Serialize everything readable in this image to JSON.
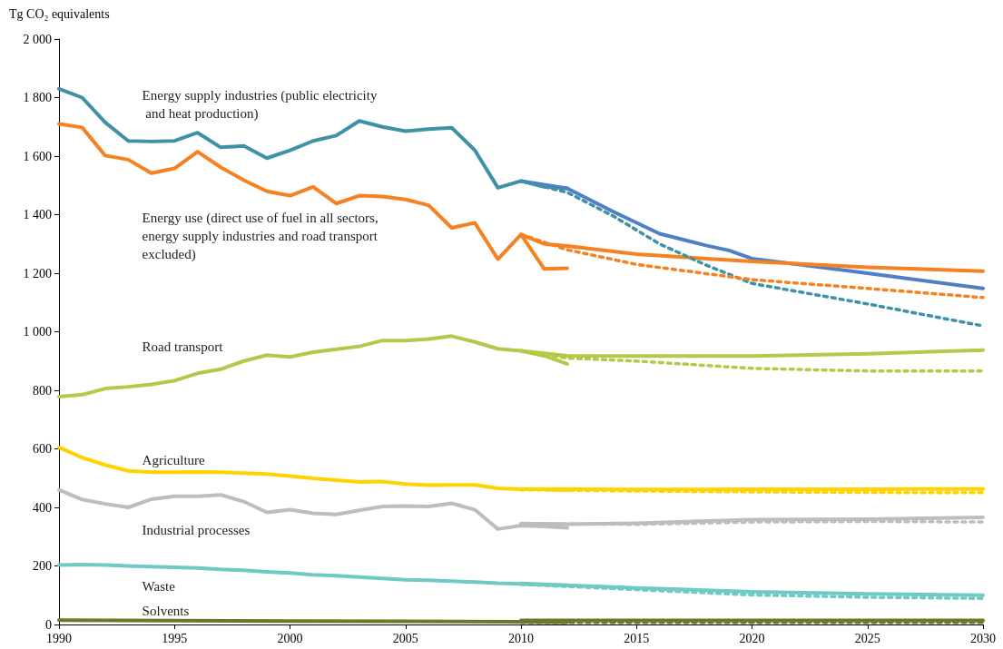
{
  "chart_data": {
    "type": "line",
    "ylabel": "Tg CO₂ equivalents",
    "xlim": [
      1990,
      2030
    ],
    "xticks": [
      1990,
      1995,
      2000,
      2005,
      2010,
      2015,
      2020,
      2025,
      2030
    ],
    "ylim": [
      0,
      2000
    ],
    "yticks": [
      0,
      200,
      400,
      600,
      800,
      {
        "value": 1000,
        "label": "1 000"
      },
      {
        "value": 1200,
        "label": "1 200"
      },
      {
        "value": 1400,
        "label": "1 400"
      },
      {
        "value": 1600,
        "label": "1 600"
      },
      {
        "value": 1800,
        "label": "1 800"
      },
      {
        "value": 2000,
        "label": "2 000"
      }
    ],
    "grid": false,
    "marker": "none",
    "series": [
      {
        "name": "Energy supply industries (public electricity and heat production)",
        "color": "#3f91a6",
        "line_style": "solid",
        "x": [
          1990,
          1991,
          1992,
          1993,
          1994,
          1995,
          1996,
          1997,
          1998,
          1999,
          2000,
          2001,
          2002,
          2003,
          2004,
          2005,
          2006,
          2007,
          2008,
          2009,
          2010,
          2011,
          2012
        ],
        "values": [
          1830,
          1800,
          1715,
          1652,
          1650,
          1652,
          1680,
          1630,
          1635,
          1593,
          1620,
          1652,
          1670,
          1720,
          1700,
          1685,
          1692,
          1697,
          1620,
          1492,
          1515,
          1495,
          1490
        ]
      },
      {
        "color": "#4f7fc6",
        "line_style": "solid",
        "x": [
          2010,
          2012,
          2014,
          2016,
          2018,
          2019,
          2020,
          2025,
          2030
        ],
        "values": [
          1515,
          1490,
          1410,
          1335,
          1295,
          1278,
          1250,
          1200,
          1148
        ]
      },
      {
        "color": "#3f91a6",
        "line_style": "dashed",
        "x": [
          2010,
          2012,
          2014,
          2016,
          2018,
          2020,
          2025,
          2030
        ],
        "values": [
          1515,
          1476,
          1395,
          1300,
          1228,
          1165,
          1095,
          1020
        ]
      },
      {
        "name": "Energy use (direct use of fuel in all sectors, energy supply industries and road transport excluded)",
        "color": "#f58220",
        "line_style": "solid",
        "x": [
          1990,
          1991,
          1992,
          1993,
          1994,
          1995,
          1996,
          1997,
          1998,
          1999,
          2000,
          2001,
          2002,
          2003,
          2004,
          2005,
          2006,
          2007,
          2008,
          2009,
          2010,
          2011,
          2012
        ],
        "values": [
          1710,
          1698,
          1602,
          1588,
          1542,
          1558,
          1615,
          1562,
          1518,
          1480,
          1465,
          1495,
          1438,
          1465,
          1462,
          1452,
          1432,
          1355,
          1372,
          1248,
          1332,
          1215,
          1217
        ]
      },
      {
        "color": "#f58220",
        "line_style": "solid",
        "x": [
          2010,
          2011,
          2012,
          2015,
          2020,
          2025,
          2030
        ],
        "values": [
          1332,
          1300,
          1293,
          1265,
          1240,
          1220,
          1207
        ]
      },
      {
        "color": "#f58220",
        "line_style": "dashed",
        "x": [
          2010,
          2012,
          2015,
          2020,
          2025,
          2030
        ],
        "values": [
          1332,
          1280,
          1230,
          1178,
          1148,
          1117
        ]
      },
      {
        "name": "Road transport",
        "color": "#b2c94a",
        "line_style": "solid",
        "x": [
          1990,
          1991,
          1992,
          1993,
          1994,
          1995,
          1996,
          1997,
          1998,
          1999,
          2000,
          2001,
          2002,
          2003,
          2004,
          2005,
          2006,
          2007,
          2008,
          2009,
          2010,
          2011,
          2012
        ],
        "values": [
          778,
          785,
          806,
          812,
          820,
          833,
          858,
          872,
          900,
          920,
          914,
          930,
          940,
          950,
          970,
          970,
          975,
          985,
          965,
          942,
          935,
          918,
          890
        ]
      },
      {
        "color": "#b2c94a",
        "line_style": "solid",
        "x": [
          2010,
          2012,
          2015,
          2020,
          2025,
          2030
        ],
        "values": [
          935,
          918,
          917,
          917,
          925,
          937
        ]
      },
      {
        "color": "#b2c94a",
        "line_style": "dashed",
        "x": [
          2010,
          2012,
          2015,
          2020,
          2025,
          2030
        ],
        "values": [
          935,
          910,
          900,
          875,
          866,
          866
        ]
      },
      {
        "name": "Agriculture",
        "color": "#ffd200",
        "line_style": "solid",
        "x": [
          1990,
          1991,
          1992,
          1993,
          1994,
          1995,
          1996,
          1997,
          1998,
          1999,
          2000,
          2001,
          2002,
          2003,
          2004,
          2005,
          2006,
          2007,
          2008,
          2009,
          2010,
          2011,
          2012
        ],
        "values": [
          605,
          570,
          545,
          525,
          520,
          520,
          521,
          520,
          517,
          514,
          507,
          499,
          493,
          487,
          488,
          480,
          476,
          477,
          477,
          465,
          462,
          462,
          458
        ]
      },
      {
        "color": "#ffd200",
        "line_style": "solid",
        "x": [
          2010,
          2015,
          2020,
          2025,
          2030
        ],
        "values": [
          463,
          461,
          462,
          462,
          463
        ]
      },
      {
        "color": "#ffd200",
        "line_style": "dashed",
        "x": [
          2010,
          2015,
          2020,
          2025,
          2030
        ],
        "values": [
          460,
          456,
          453,
          451,
          450
        ]
      },
      {
        "name": "Industrial processes",
        "color": "#bdbdc0",
        "line_style": "solid",
        "x": [
          1990,
          1991,
          1992,
          1993,
          1994,
          1995,
          1996,
          1997,
          1998,
          1999,
          2000,
          2001,
          2002,
          2003,
          2004,
          2005,
          2006,
          2007,
          2008,
          2009,
          2010,
          2011,
          2012
        ],
        "values": [
          460,
          427,
          412,
          400,
          428,
          438,
          438,
          443,
          420,
          383,
          392,
          380,
          376,
          390,
          403,
          405,
          403,
          414,
          392,
          326,
          338,
          335,
          330
        ]
      },
      {
        "color": "#bdbdc0",
        "line_style": "solid",
        "x": [
          2010,
          2012,
          2015,
          2020,
          2025,
          2030
        ],
        "values": [
          345,
          343,
          346,
          358,
          360,
          366
        ]
      },
      {
        "color": "#bdbdc0",
        "line_style": "dashed",
        "x": [
          2010,
          2015,
          2020,
          2025,
          2030
        ],
        "values": [
          345,
          342,
          350,
          352,
          350
        ]
      },
      {
        "name": "Waste",
        "color": "#6fcac4",
        "line_style": "solid",
        "x": [
          1990,
          1991,
          1992,
          1993,
          1994,
          1995,
          1996,
          1997,
          1998,
          1999,
          2000,
          2001,
          2002,
          2003,
          2004,
          2005,
          2006,
          2007,
          2008,
          2009,
          2010,
          2011,
          2012
        ],
        "values": [
          203,
          205,
          203,
          200,
          198,
          195,
          193,
          188,
          185,
          180,
          176,
          170,
          167,
          162,
          157,
          153,
          151,
          148,
          145,
          141,
          139,
          136,
          133
        ]
      },
      {
        "color": "#6fcac4",
        "line_style": "solid",
        "x": [
          2010,
          2015,
          2020,
          2025,
          2030
        ],
        "values": [
          140,
          125,
          112,
          105,
          100
        ]
      },
      {
        "color": "#6fcac4",
        "line_style": "dashed",
        "x": [
          2010,
          2015,
          2020,
          2025,
          2030
        ],
        "values": [
          137,
          119,
          101,
          93,
          89
        ]
      },
      {
        "name": "Solvents",
        "color": "#6b7a2a",
        "line_style": "solid",
        "x": [
          1990,
          1995,
          2000,
          2005,
          2010,
          2012
        ],
        "values": [
          15,
          13,
          12,
          11,
          9,
          8
        ]
      },
      {
        "color": "#6b7a2a",
        "line_style": "solid",
        "x": [
          2010,
          2015,
          2020,
          2025,
          2030
        ],
        "values": [
          14,
          14,
          14,
          14,
          14
        ]
      },
      {
        "color": "#6b7a2a",
        "line_style": "dashed",
        "x": [
          2010,
          2015,
          2020,
          2025,
          2030
        ],
        "values": [
          7,
          7,
          7,
          7,
          7
        ]
      }
    ]
  }
}
